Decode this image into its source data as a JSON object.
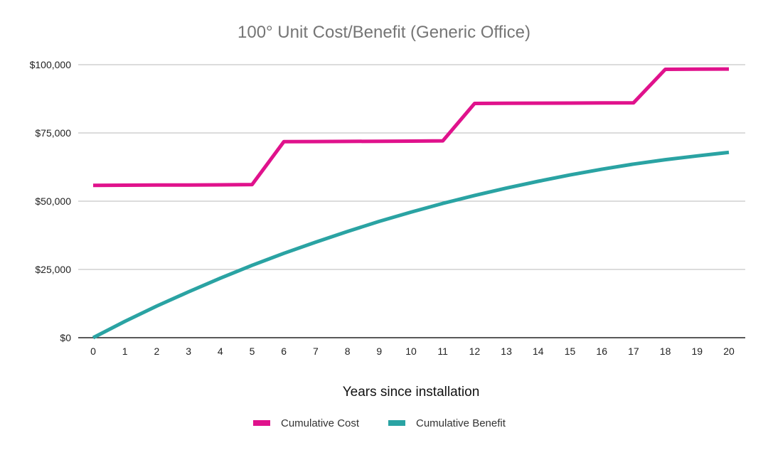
{
  "chart_data": {
    "type": "line",
    "title": "100° Unit Cost/Benefit (Generic Office)",
    "xlabel": "Years since installation",
    "ylabel": "",
    "x": [
      0,
      1,
      2,
      3,
      4,
      5,
      6,
      7,
      8,
      9,
      10,
      11,
      12,
      13,
      14,
      15,
      16,
      17,
      18,
      19,
      20
    ],
    "ylim": [
      0,
      100000
    ],
    "yticks": [
      0,
      25000,
      50000,
      75000,
      100000
    ],
    "ytick_labels": [
      "$0",
      "$25,000",
      "$50,000",
      "$75,000",
      "$100,000"
    ],
    "grid": true,
    "legend_position": "bottom",
    "series": [
      {
        "name": "Cumulative Cost",
        "color": "#e0128c",
        "values": [
          55800,
          55850,
          55900,
          55950,
          56000,
          56100,
          71800,
          71850,
          71900,
          71950,
          72000,
          72100,
          85800,
          85850,
          85900,
          85950,
          86000,
          86050,
          98300,
          98350,
          98400
        ]
      },
      {
        "name": "Cumulative Benefit",
        "color": "#2aa3a3",
        "values": [
          0,
          6000,
          11600,
          16800,
          21800,
          26500,
          30900,
          35000,
          38900,
          42600,
          46000,
          49200,
          52100,
          54800,
          57300,
          59600,
          61700,
          63600,
          65200,
          66600,
          67900
        ]
      }
    ]
  }
}
